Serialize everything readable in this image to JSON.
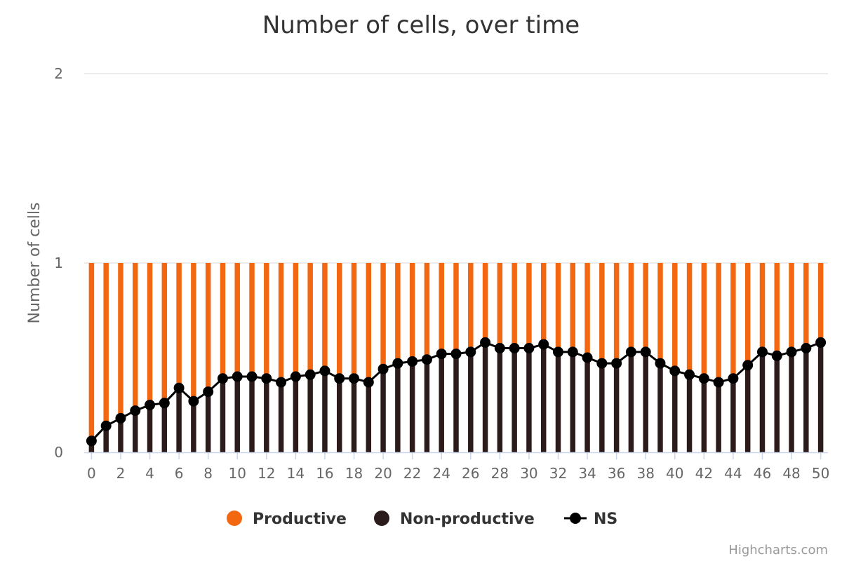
{
  "chart_data": {
    "type": "bar",
    "stacking": "normal",
    "title": "Number of cells, over time",
    "ylabel": "Number of cells",
    "xlabel": "",
    "ylim": [
      0,
      2
    ],
    "yticks": [
      "0",
      "1",
      "2"
    ],
    "x": [
      0,
      1,
      2,
      3,
      4,
      5,
      6,
      7,
      8,
      9,
      10,
      11,
      12,
      13,
      14,
      15,
      16,
      17,
      18,
      19,
      20,
      21,
      22,
      23,
      24,
      25,
      26,
      27,
      28,
      29,
      30,
      31,
      32,
      33,
      34,
      35,
      36,
      37,
      38,
      39,
      40,
      41,
      42,
      43,
      44,
      45,
      46,
      47,
      48,
      49,
      50
    ],
    "xticks": [
      "0",
      "2",
      "4",
      "6",
      "8",
      "10",
      "12",
      "14",
      "16",
      "18",
      "20",
      "22",
      "24",
      "26",
      "28",
      "30",
      "32",
      "34",
      "36",
      "38",
      "40",
      "42",
      "44",
      "46",
      "48",
      "50"
    ],
    "grid": true,
    "legend_position": "bottom-center",
    "series": [
      {
        "name": "Productive",
        "type": "column",
        "color": "#f2670f",
        "values": [
          0.95,
          0.86,
          0.82,
          0.78,
          0.75,
          0.74,
          0.65,
          0.73,
          0.68,
          0.61,
          0.6,
          0.6,
          0.61,
          0.63,
          0.6,
          0.59,
          0.57,
          0.61,
          0.61,
          0.63,
          0.56,
          0.53,
          0.52,
          0.51,
          0.48,
          0.48,
          0.47,
          0.42,
          0.45,
          0.45,
          0.45,
          0.43,
          0.47,
          0.47,
          0.5,
          0.53,
          0.53,
          0.47,
          0.47,
          0.53,
          0.57,
          0.59,
          0.61,
          0.63,
          0.61,
          0.54,
          0.47,
          0.49,
          0.47,
          0.45,
          0.42
        ]
      },
      {
        "name": "Non-productive",
        "type": "column",
        "color": "#2b1b1b",
        "values": [
          0.05,
          0.14,
          0.18,
          0.22,
          0.25,
          0.26,
          0.35,
          0.27,
          0.32,
          0.39,
          0.4,
          0.4,
          0.39,
          0.37,
          0.4,
          0.41,
          0.43,
          0.39,
          0.39,
          0.37,
          0.44,
          0.47,
          0.48,
          0.49,
          0.52,
          0.52,
          0.53,
          0.58,
          0.55,
          0.55,
          0.55,
          0.57,
          0.53,
          0.53,
          0.5,
          0.47,
          0.47,
          0.53,
          0.53,
          0.47,
          0.43,
          0.41,
          0.39,
          0.37,
          0.39,
          0.46,
          0.53,
          0.51,
          0.53,
          0.55,
          0.58
        ]
      },
      {
        "name": "NS",
        "type": "line",
        "color": "#000000",
        "values": [
          0.06,
          0.14,
          0.18,
          0.22,
          0.25,
          0.26,
          0.34,
          0.27,
          0.32,
          0.39,
          0.4,
          0.4,
          0.39,
          0.37,
          0.4,
          0.41,
          0.43,
          0.39,
          0.39,
          0.37,
          0.44,
          0.47,
          0.48,
          0.49,
          0.52,
          0.52,
          0.53,
          0.58,
          0.55,
          0.55,
          0.55,
          0.57,
          0.53,
          0.53,
          0.5,
          0.47,
          0.47,
          0.53,
          0.53,
          0.47,
          0.43,
          0.41,
          0.39,
          0.37,
          0.39,
          0.46,
          0.53,
          0.51,
          0.53,
          0.55,
          0.58
        ]
      }
    ]
  },
  "legend": {
    "productive": "Productive",
    "nonproductive": "Non-productive",
    "ns": "NS"
  },
  "credits": "Highcharts.com"
}
